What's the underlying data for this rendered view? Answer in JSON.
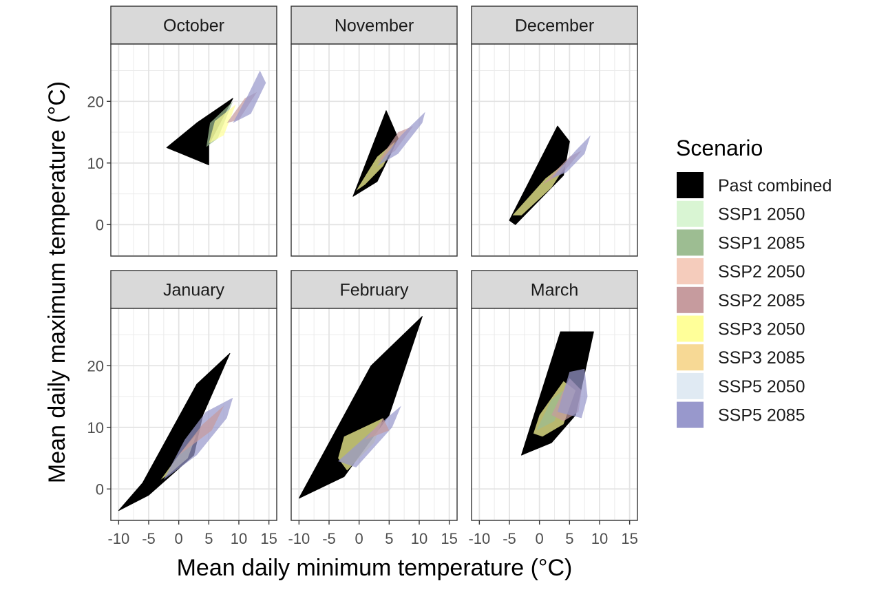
{
  "chart_data": {
    "type": "area",
    "xlabel": "Mean daily minimum temperature (°C)",
    "ylabel": "Mean daily maximum temperature (°C)",
    "x_ticks": [
      -10,
      -5,
      0,
      5,
      10,
      15
    ],
    "x_tick_labels": [
      "-10",
      "-5",
      "0",
      "5",
      "10",
      "15"
    ],
    "y_ticks": [
      0,
      10,
      20
    ],
    "y_tick_labels": [
      "0",
      "10",
      "20"
    ],
    "xlim": [
      -11.3,
      16.3
    ],
    "ylim": [
      -5.1,
      29.3
    ],
    "grid": true,
    "legend": {
      "title": "Scenario",
      "position": "right",
      "entries": [
        {
          "name": "Past combined",
          "color": "#000000",
          "alpha": 1.0
        },
        {
          "name": "SSP1 2050",
          "color": "#d9f5d3",
          "alpha": 1.0
        },
        {
          "name": "SSP1 2085",
          "color": "#9dbd92",
          "alpha": 1.0
        },
        {
          "name": "SSP2 2050",
          "color": "#f5ccbc",
          "alpha": 1.0
        },
        {
          "name": "SSP2 2085",
          "color": "#c69b9e",
          "alpha": 1.0
        },
        {
          "name": "SSP3 2050",
          "color": "#ffff99",
          "alpha": 1.0
        },
        {
          "name": "SSP3 2085",
          "color": "#f7d995",
          "alpha": 1.0
        },
        {
          "name": "SSP5 2050",
          "color": "#e0eaf3",
          "alpha": 1.0
        },
        {
          "name": "SSP5 2085",
          "color": "#9898cc",
          "alpha": 1.0
        }
      ]
    },
    "panels": [
      {
        "title": "October",
        "hulls": [
          {
            "series": "Past combined",
            "points": [
              [
                -2,
                12.5
              ],
              [
                3,
                16.5
              ],
              [
                9,
                20.5
              ],
              [
                5,
                13
              ],
              [
                5,
                9.7
              ]
            ]
          },
          {
            "series": "SSP1 2085",
            "points": [
              [
                4.6,
                12.6
              ],
              [
                5.2,
                16.5
              ],
              [
                9,
                20
              ],
              [
                6.5,
                14
              ]
            ]
          },
          {
            "series": "SSP3 2050",
            "points": [
              [
                5,
                13.2
              ],
              [
                6,
                16.8
              ],
              [
                9.5,
                19.5
              ],
              [
                7.5,
                14.5
              ]
            ]
          },
          {
            "series": "SSP2 2085",
            "points": [
              [
                8,
                16.5
              ],
              [
                11,
                20.5
              ],
              [
                13,
                21.5
              ],
              [
                10,
                17
              ]
            ]
          },
          {
            "series": "SSP5 2085",
            "points": [
              [
                9,
                16.5
              ],
              [
                11.5,
                21
              ],
              [
                13.5,
                25
              ],
              [
                14.5,
                23
              ],
              [
                12,
                18
              ]
            ]
          }
        ]
      },
      {
        "title": "November",
        "hulls": [
          {
            "series": "Past combined",
            "points": [
              [
                -1,
                4.6
              ],
              [
                4.5,
                18.5
              ],
              [
                6.5,
                14
              ],
              [
                3,
                7
              ]
            ]
          },
          {
            "series": "SSP3 2050",
            "points": [
              [
                -0.5,
                5.5
              ],
              [
                3,
                11
              ],
              [
                6,
                13.5
              ],
              [
                4,
                9.5
              ],
              [
                1,
                6.5
              ]
            ]
          },
          {
            "series": "SSP2 2085",
            "points": [
              [
                3,
                10
              ],
              [
                6.5,
                15
              ],
              [
                9,
                16
              ],
              [
                6,
                12
              ]
            ]
          },
          {
            "series": "SSP5 2085",
            "points": [
              [
                3,
                9.5
              ],
              [
                7,
                14.5
              ],
              [
                11,
                18.3
              ],
              [
                10.5,
                16.5
              ],
              [
                6.5,
                11.5
              ]
            ]
          }
        ]
      },
      {
        "title": "December",
        "hulls": [
          {
            "series": "Past combined",
            "points": [
              [
                -5,
                0.7
              ],
              [
                3,
                16
              ],
              [
                5,
                13.5
              ],
              [
                4,
                8
              ],
              [
                -4,
                0
              ]
            ]
          },
          {
            "series": "SSP3 2050",
            "points": [
              [
                -4.5,
                1.5
              ],
              [
                1,
                7.5
              ],
              [
                5,
                10.5
              ],
              [
                2,
                6
              ],
              [
                -3,
                1.5
              ]
            ]
          },
          {
            "series": "SSP2 2085",
            "points": [
              [
                0.5,
                6.5
              ],
              [
                5,
                11
              ],
              [
                7,
                12
              ],
              [
                4,
                8.5
              ]
            ]
          },
          {
            "series": "SSP5 2085",
            "points": [
              [
                2,
                7.5
              ],
              [
                6,
                12
              ],
              [
                8.5,
                14.5
              ],
              [
                7.5,
                11.5
              ],
              [
                4.5,
                8.5
              ]
            ]
          }
        ]
      },
      {
        "title": "January",
        "hulls": [
          {
            "series": "Past combined",
            "points": [
              [
                -10,
                -3.5
              ],
              [
                -6,
                1
              ],
              [
                3,
                17
              ],
              [
                8.5,
                22
              ],
              [
                4,
                12
              ],
              [
                2.5,
                5.5
              ],
              [
                -5,
                -1
              ]
            ]
          },
          {
            "series": "SSP3 2050",
            "points": [
              [
                -3,
                1.5
              ],
              [
                0,
                5.5
              ],
              [
                3,
                9
              ],
              [
                1.5,
                5
              ],
              [
                -1.5,
                2.5
              ]
            ]
          },
          {
            "series": "SSP5 2085",
            "points": [
              [
                -2.5,
                1.5
              ],
              [
                1,
                8
              ],
              [
                4.5,
                12.5
              ],
              [
                9,
                14.8
              ],
              [
                8,
                11.5
              ],
              [
                3,
                5.5
              ]
            ]
          },
          {
            "series": "SSP2 2085",
            "points": [
              [
                0,
                5.5
              ],
              [
                4,
                10.5
              ],
              [
                7.5,
                13.5
              ],
              [
                5.5,
                9.5
              ]
            ]
          }
        ]
      },
      {
        "title": "February",
        "hulls": [
          {
            "series": "Past combined",
            "points": [
              [
                -10,
                -1.5
              ],
              [
                2,
                20
              ],
              [
                10.5,
                28
              ],
              [
                5,
                12
              ],
              [
                -2.5,
                2
              ]
            ]
          },
          {
            "series": "SSP3 2050",
            "points": [
              [
                -3.5,
                5
              ],
              [
                -2.5,
                8.5
              ],
              [
                4,
                11.5
              ],
              [
                2.5,
                7.5
              ],
              [
                -2,
                3
              ]
            ]
          },
          {
            "series": "SSP5 2085",
            "points": [
              [
                -3.5,
                4.5
              ],
              [
                4,
                11
              ],
              [
                7,
                13.5
              ],
              [
                5.5,
                10
              ],
              [
                -0.5,
                3.5
              ]
            ]
          },
          {
            "series": "SSP2 2085",
            "points": [
              [
                1,
                8
              ],
              [
                4,
                11.5
              ],
              [
                5,
                9.5
              ]
            ]
          }
        ]
      },
      {
        "title": "March",
        "hulls": [
          {
            "series": "Past combined",
            "points": [
              [
                -3,
                5.5
              ],
              [
                3.5,
                25.5
              ],
              [
                9,
                25.5
              ],
              [
                6,
                12
              ],
              [
                2,
                7.5
              ]
            ]
          },
          {
            "series": "SSP3 2050",
            "points": [
              [
                -1,
                9
              ],
              [
                0,
                12
              ],
              [
                4,
                17.5
              ],
              [
                6,
                16
              ],
              [
                4,
                10.5
              ],
              [
                0.5,
                8.5
              ]
            ]
          },
          {
            "series": "SSP1 2085",
            "points": [
              [
                -0.5,
                9.5
              ],
              [
                2,
                14.5
              ],
              [
                4,
                16
              ],
              [
                2.5,
                11
              ],
              [
                0.5,
                10
              ]
            ]
          },
          {
            "series": "SSP2 2085",
            "points": [
              [
                2,
                12
              ],
              [
                5,
                18
              ],
              [
                7,
                16
              ],
              [
                6.5,
                12.5
              ],
              [
                4,
                11
              ]
            ]
          },
          {
            "series": "SSP5 2085",
            "points": [
              [
                3,
                12.5
              ],
              [
                5,
                19
              ],
              [
                7.5,
                19.5
              ],
              [
                8,
                15
              ],
              [
                7,
                11.5
              ]
            ]
          }
        ]
      }
    ]
  }
}
